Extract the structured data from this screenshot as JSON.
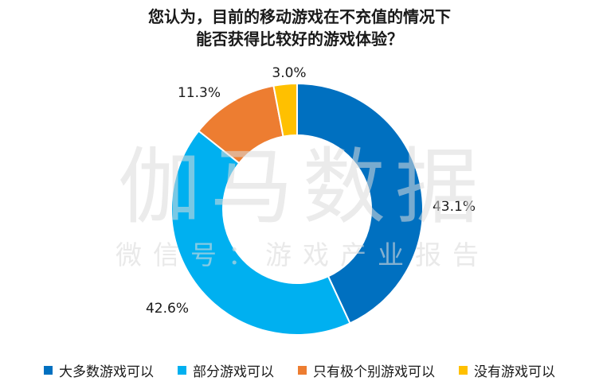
{
  "chart_data": {
    "type": "pie",
    "title_lines": [
      "您认为，目前的移动游戏在不充值的情况下",
      "能否获得比较好的游戏体验？"
    ],
    "watermark": {
      "main": "伽马数据",
      "sub": "微信号：游戏产业报告"
    },
    "legend_placement": "bottom",
    "slices": [
      {
        "label": "大多数游戏可以",
        "value": 43.1,
        "value_label": "43.1%",
        "color": "#0070C0"
      },
      {
        "label": "部分游戏可以",
        "value": 42.6,
        "value_label": "42.6%",
        "color": "#00B0F0"
      },
      {
        "label": "只有极个别游戏可以",
        "value": 11.3,
        "value_label": "11.3%",
        "color": "#ED7D31"
      },
      {
        "label": "没有游戏可以",
        "value": 3.0,
        "value_label": "3.0%",
        "color": "#FFC000"
      }
    ]
  }
}
